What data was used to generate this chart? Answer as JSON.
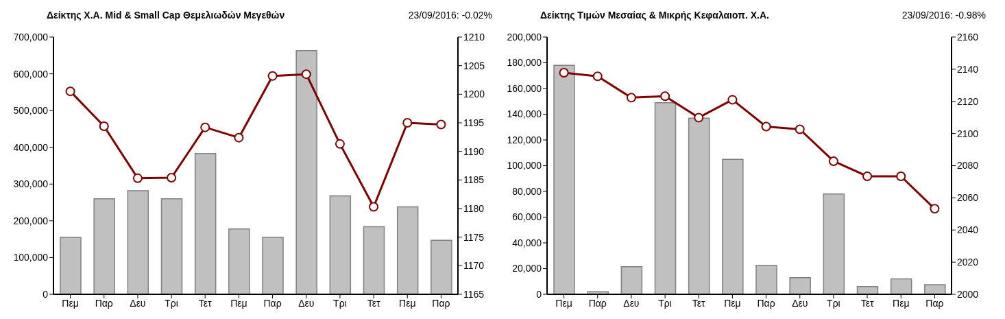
{
  "chart_data": [
    {
      "type": "bar",
      "title": "Δείκτης Χ.Α. Mid & Small Cap Θεμελιωδών Μεγεθών",
      "subtitle": "23/09/2016: -0.02%",
      "categories": [
        "Πεμ",
        "Παρ",
        "Δευ",
        "Τρι",
        "Τετ",
        "Πεμ",
        "Παρ",
        "Δευ",
        "Τρι",
        "Τετ",
        "Πεμ",
        "Παρ"
      ],
      "series": [
        {
          "color": "#c0c0c0",
          "values": [
            155000,
            260000,
            282000,
            260000,
            383000,
            178000,
            155000,
            663000,
            268000,
            184000,
            238000,
            147000
          ]
        },
        {
          "type": "line",
          "axis": "y2",
          "color": "#800000",
          "marker": "circle",
          "values": [
            1200.5,
            1194.4,
            1185.3,
            1185.4,
            1194.2,
            1192.4,
            1203.2,
            1203.5,
            1191.3,
            1180.3,
            1195.0,
            1194.7
          ]
        }
      ],
      "ylim": [
        0,
        700000
      ],
      "yticks": [
        {
          "value": 0,
          "label": "0"
        },
        {
          "value": 100000,
          "label": "100,000"
        },
        {
          "value": 200000,
          "label": "200,000"
        },
        {
          "value": 300000,
          "label": "300,000"
        },
        {
          "value": 400000,
          "label": "400,000"
        },
        {
          "value": 500000,
          "label": "500,000"
        },
        {
          "value": 600000,
          "label": "600,000"
        },
        {
          "value": 700000,
          "label": "700,000"
        }
      ],
      "y2lim": [
        1165,
        1210
      ],
      "y2ticks": [
        1165,
        1170,
        1175,
        1180,
        1185,
        1190,
        1195,
        1200,
        1205,
        1210
      ],
      "grid": false,
      "legend": false
    },
    {
      "type": "bar",
      "title": "Δείκτης Τιμών Μεσαίας & Μικρής Κεφαλαιοπ.  Χ.Α.",
      "subtitle": "23/09/2016: -0.98%",
      "categories": [
        "Πεμ",
        "Παρ",
        "Δευ",
        "Τρι",
        "Τετ",
        "Πεμ",
        "Παρ",
        "Δευ",
        "Τρι",
        "Τετ",
        "Πεμ",
        "Παρ"
      ],
      "series": [
        {
          "color": "#c0c0c0",
          "values": [
            178000,
            2000,
            21500,
            149000,
            137000,
            105000,
            22500,
            13000,
            78000,
            6000,
            12000,
            7500
          ]
        },
        {
          "type": "line",
          "axis": "y2",
          "color": "#800000",
          "marker": "circle",
          "values": [
            2137.8,
            2135.6,
            2122.3,
            2123.2,
            2109.9,
            2121.0,
            2104.3,
            2102.6,
            2082.8,
            2073.4,
            2073.4,
            2053.2
          ]
        }
      ],
      "ylim": [
        0,
        200000
      ],
      "yticks": [
        {
          "value": 0,
          "label": "0"
        },
        {
          "value": 20000,
          "label": "20,000"
        },
        {
          "value": 40000,
          "label": "40,000"
        },
        {
          "value": 60000,
          "label": "60,000"
        },
        {
          "value": 80000,
          "label": "80,000"
        },
        {
          "value": 100000,
          "label": "100,000"
        },
        {
          "value": 120000,
          "label": "120,000"
        },
        {
          "value": 140000,
          "label": "140,000"
        },
        {
          "value": 160000,
          "label": "160,000"
        },
        {
          "value": 180000,
          "label": "180,000"
        },
        {
          "value": 200000,
          "label": "200,000"
        }
      ],
      "y2lim": [
        2000,
        2160
      ],
      "y2ticks": [
        2000,
        2020,
        2040,
        2060,
        2080,
        2100,
        2120,
        2140,
        2160
      ],
      "grid": false,
      "legend": false
    }
  ]
}
